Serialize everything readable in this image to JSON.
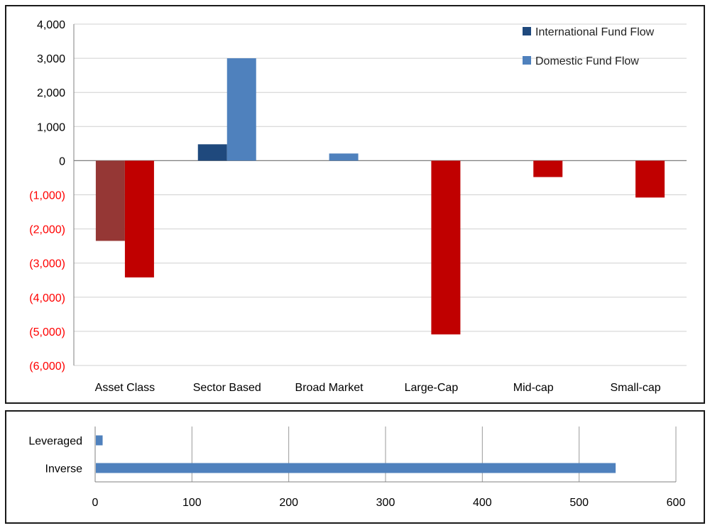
{
  "chart_data": [
    {
      "type": "bar",
      "categories": [
        "Asset Class",
        "Sector Based",
        "Broad Market",
        "Large-Cap",
        "Mid-cap",
        "Small-cap"
      ],
      "series": [
        {
          "name": "International Fund Flow",
          "color": "#1f497d",
          "values": [
            -2350,
            480,
            0,
            0,
            0,
            0
          ],
          "point_colors": [
            "#953735",
            null,
            null,
            null,
            null,
            null
          ]
        },
        {
          "name": "Domestic Fund Flow",
          "color": "#4f81bd",
          "values": [
            -3420,
            3000,
            210,
            -5090,
            -480,
            -1080
          ],
          "point_colors": [
            "#c00000",
            null,
            null,
            "#c00000",
            "#c00000",
            "#c00000"
          ]
        }
      ],
      "ylim": [
        -6000,
        4000
      ],
      "yticks": [
        4000,
        3000,
        2000,
        1000,
        0,
        -1000,
        -2000,
        -3000,
        -4000,
        -5000,
        -6000
      ],
      "ytick_labels": [
        "4,000",
        "3,000",
        "2,000",
        "1,000",
        "0",
        "(1,000)",
        "(2,000)",
        "(3,000)",
        "(4,000)",
        "(5,000)",
        "(6,000)"
      ],
      "negative_label_color": "#ff0000",
      "grid": true,
      "legend_position": "top-right"
    },
    {
      "type": "bar",
      "orientation": "horizontal",
      "categories": [
        "Leveraged",
        "Inverse"
      ],
      "values": [
        7,
        537
      ],
      "color": "#4f81bd",
      "xlim": [
        0,
        600
      ],
      "xticks": [
        0,
        100,
        200,
        300,
        400,
        500,
        600
      ],
      "xtick_labels": [
        "0",
        "100",
        "200",
        "300",
        "400",
        "500",
        "600"
      ],
      "grid": true
    }
  ]
}
